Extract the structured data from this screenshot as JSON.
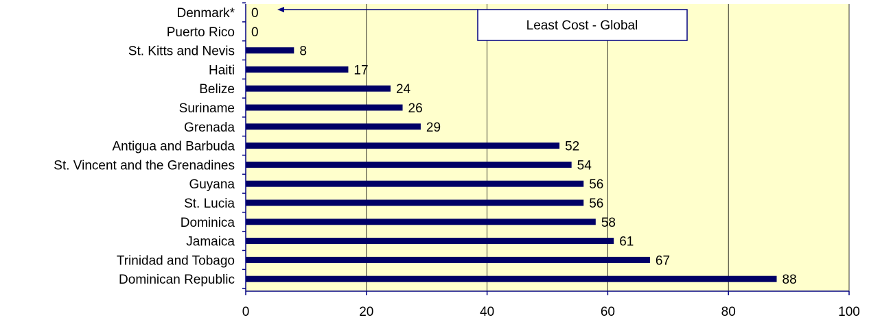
{
  "chart_data": {
    "type": "bar",
    "orientation": "horizontal",
    "categories": [
      "Denmark*",
      "Puerto Rico",
      "St. Kitts and Nevis",
      "Haiti",
      "Belize",
      "Suriname",
      "Grenada",
      "Antigua and Barbuda",
      "St. Vincent and the Grenadines",
      "Guyana",
      "St. Lucia",
      "Dominica",
      "Jamaica",
      "Trinidad and Tobago",
      "Dominican Republic"
    ],
    "values": [
      0,
      0,
      8,
      17,
      24,
      26,
      29,
      52,
      54,
      56,
      56,
      58,
      61,
      67,
      88
    ],
    "data_labels": [
      "0",
      "0",
      "8",
      "17",
      "24",
      "26",
      "29",
      "52",
      "54",
      "56",
      "56",
      "58",
      "61",
      "67",
      "88"
    ],
    "x_ticks": [
      "0",
      "20",
      "40",
      "60",
      "80",
      "100"
    ],
    "xlim": [
      0,
      100
    ],
    "title": "",
    "xlabel": "",
    "ylabel": "",
    "grid": "vertical",
    "annotation": {
      "text": "Least Cost - Global",
      "points_to": "Denmark*"
    },
    "colors": {
      "bar": "#000066",
      "plot_background": "#FFFFCC",
      "axis": "#000080",
      "gridline": "#000000",
      "annotation_border": "#000080"
    }
  }
}
